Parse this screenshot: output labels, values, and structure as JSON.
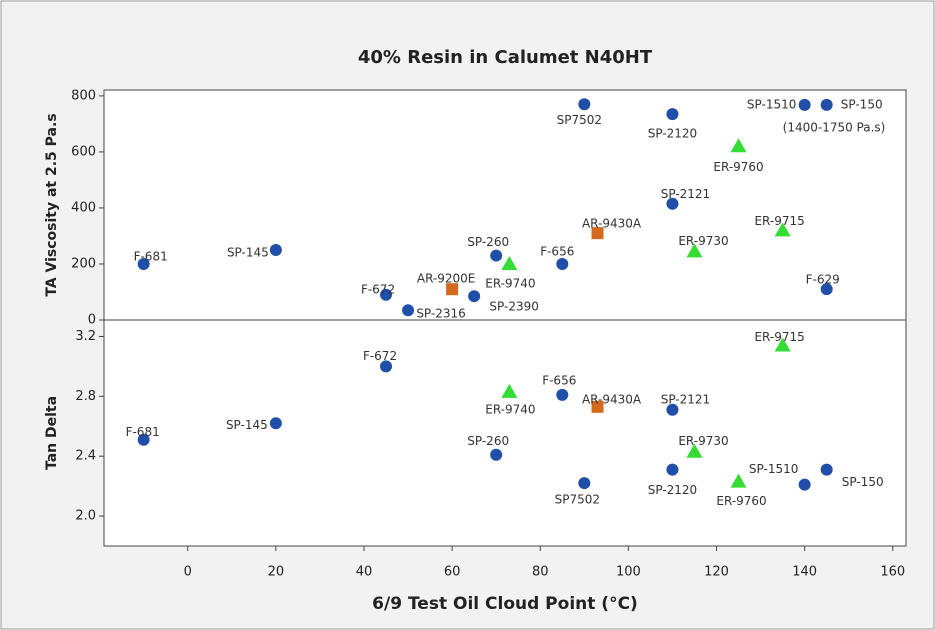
{
  "chart_data": [
    {
      "type": "scatter",
      "title": "40% Resin in Calumet N40HT",
      "ylabel": "TA Viscosity at 2.5 Pa.s",
      "annotation": "(1400-1750 Pa.s)",
      "xlim": [
        -19,
        163
      ],
      "ylim": [
        0,
        821
      ],
      "yticks": [
        0,
        200,
        400,
        600,
        800
      ],
      "series": [
        {
          "color": "#1f4fa8",
          "marker": "circle",
          "labels": [
            "F-681",
            "SP-145",
            "F-672",
            "SP-2316",
            "SP-2390",
            "SP-260",
            "F-656",
            "SP7502",
            "SP-2120",
            "SP-2121",
            "SP-1510",
            "SP-150",
            "F-629"
          ],
          "x": [
            -10,
            20,
            45,
            50,
            65,
            70,
            85,
            90,
            110,
            110,
            140,
            145,
            145
          ],
          "values": [
            200,
            250,
            90,
            35,
            85,
            230,
            200,
            770,
            735,
            415,
            768,
            768,
            110
          ]
        },
        {
          "color": "#33dd33",
          "marker": "triangle",
          "labels": [
            "ER-9740",
            "ER-9730",
            "ER-9760",
            "ER-9715"
          ],
          "x": [
            73,
            115,
            125,
            135
          ],
          "values": [
            200,
            245,
            620,
            320
          ]
        },
        {
          "color": "#d2691e",
          "marker": "square",
          "labels": [
            "AR-9200E",
            "AR-9430A"
          ],
          "x": [
            60,
            93
          ],
          "values": [
            110,
            310
          ]
        }
      ]
    },
    {
      "type": "scatter",
      "ylabel": "Tan Delta",
      "xlabel": "6/9 Test Oil Cloud Point (°C)",
      "xlim": [
        -19,
        163
      ],
      "xticks": [
        0,
        20,
        40,
        60,
        80,
        100,
        120,
        140,
        160
      ],
      "ylim": [
        1.8,
        3.31
      ],
      "yticks": [
        {
          "value": 2.0,
          "label": "2.0"
        },
        2.4,
        2.8,
        {
          "value": 3.2,
          "label": "3.2"
        }
      ],
      "series": [
        {
          "color": "#1f4fa8",
          "marker": "circle",
          "labels": [
            "F-681",
            "SP-145",
            "F-672",
            "F-656",
            "SP-260",
            "SP7502",
            "SP-2121",
            "SP-2120",
            "SP-1510",
            "SP-150"
          ],
          "x": [
            -10,
            20,
            45,
            85,
            70,
            90,
            110,
            110,
            140,
            145
          ],
          "values": [
            2.51,
            2.62,
            3.0,
            2.81,
            2.41,
            2.22,
            2.71,
            2.31,
            2.21,
            2.31
          ]
        },
        {
          "color": "#33dd33",
          "marker": "triangle",
          "labels": [
            "ER-9715",
            "ER-9740",
            "ER-9730",
            "ER-9760"
          ],
          "x": [
            135,
            73,
            115,
            125
          ],
          "values": [
            3.14,
            2.83,
            2.43,
            2.23
          ]
        },
        {
          "color": "#d2691e",
          "marker": "square",
          "labels": [
            "AR-9430A"
          ],
          "x": [
            93
          ],
          "values": [
            2.73
          ]
        }
      ]
    }
  ]
}
